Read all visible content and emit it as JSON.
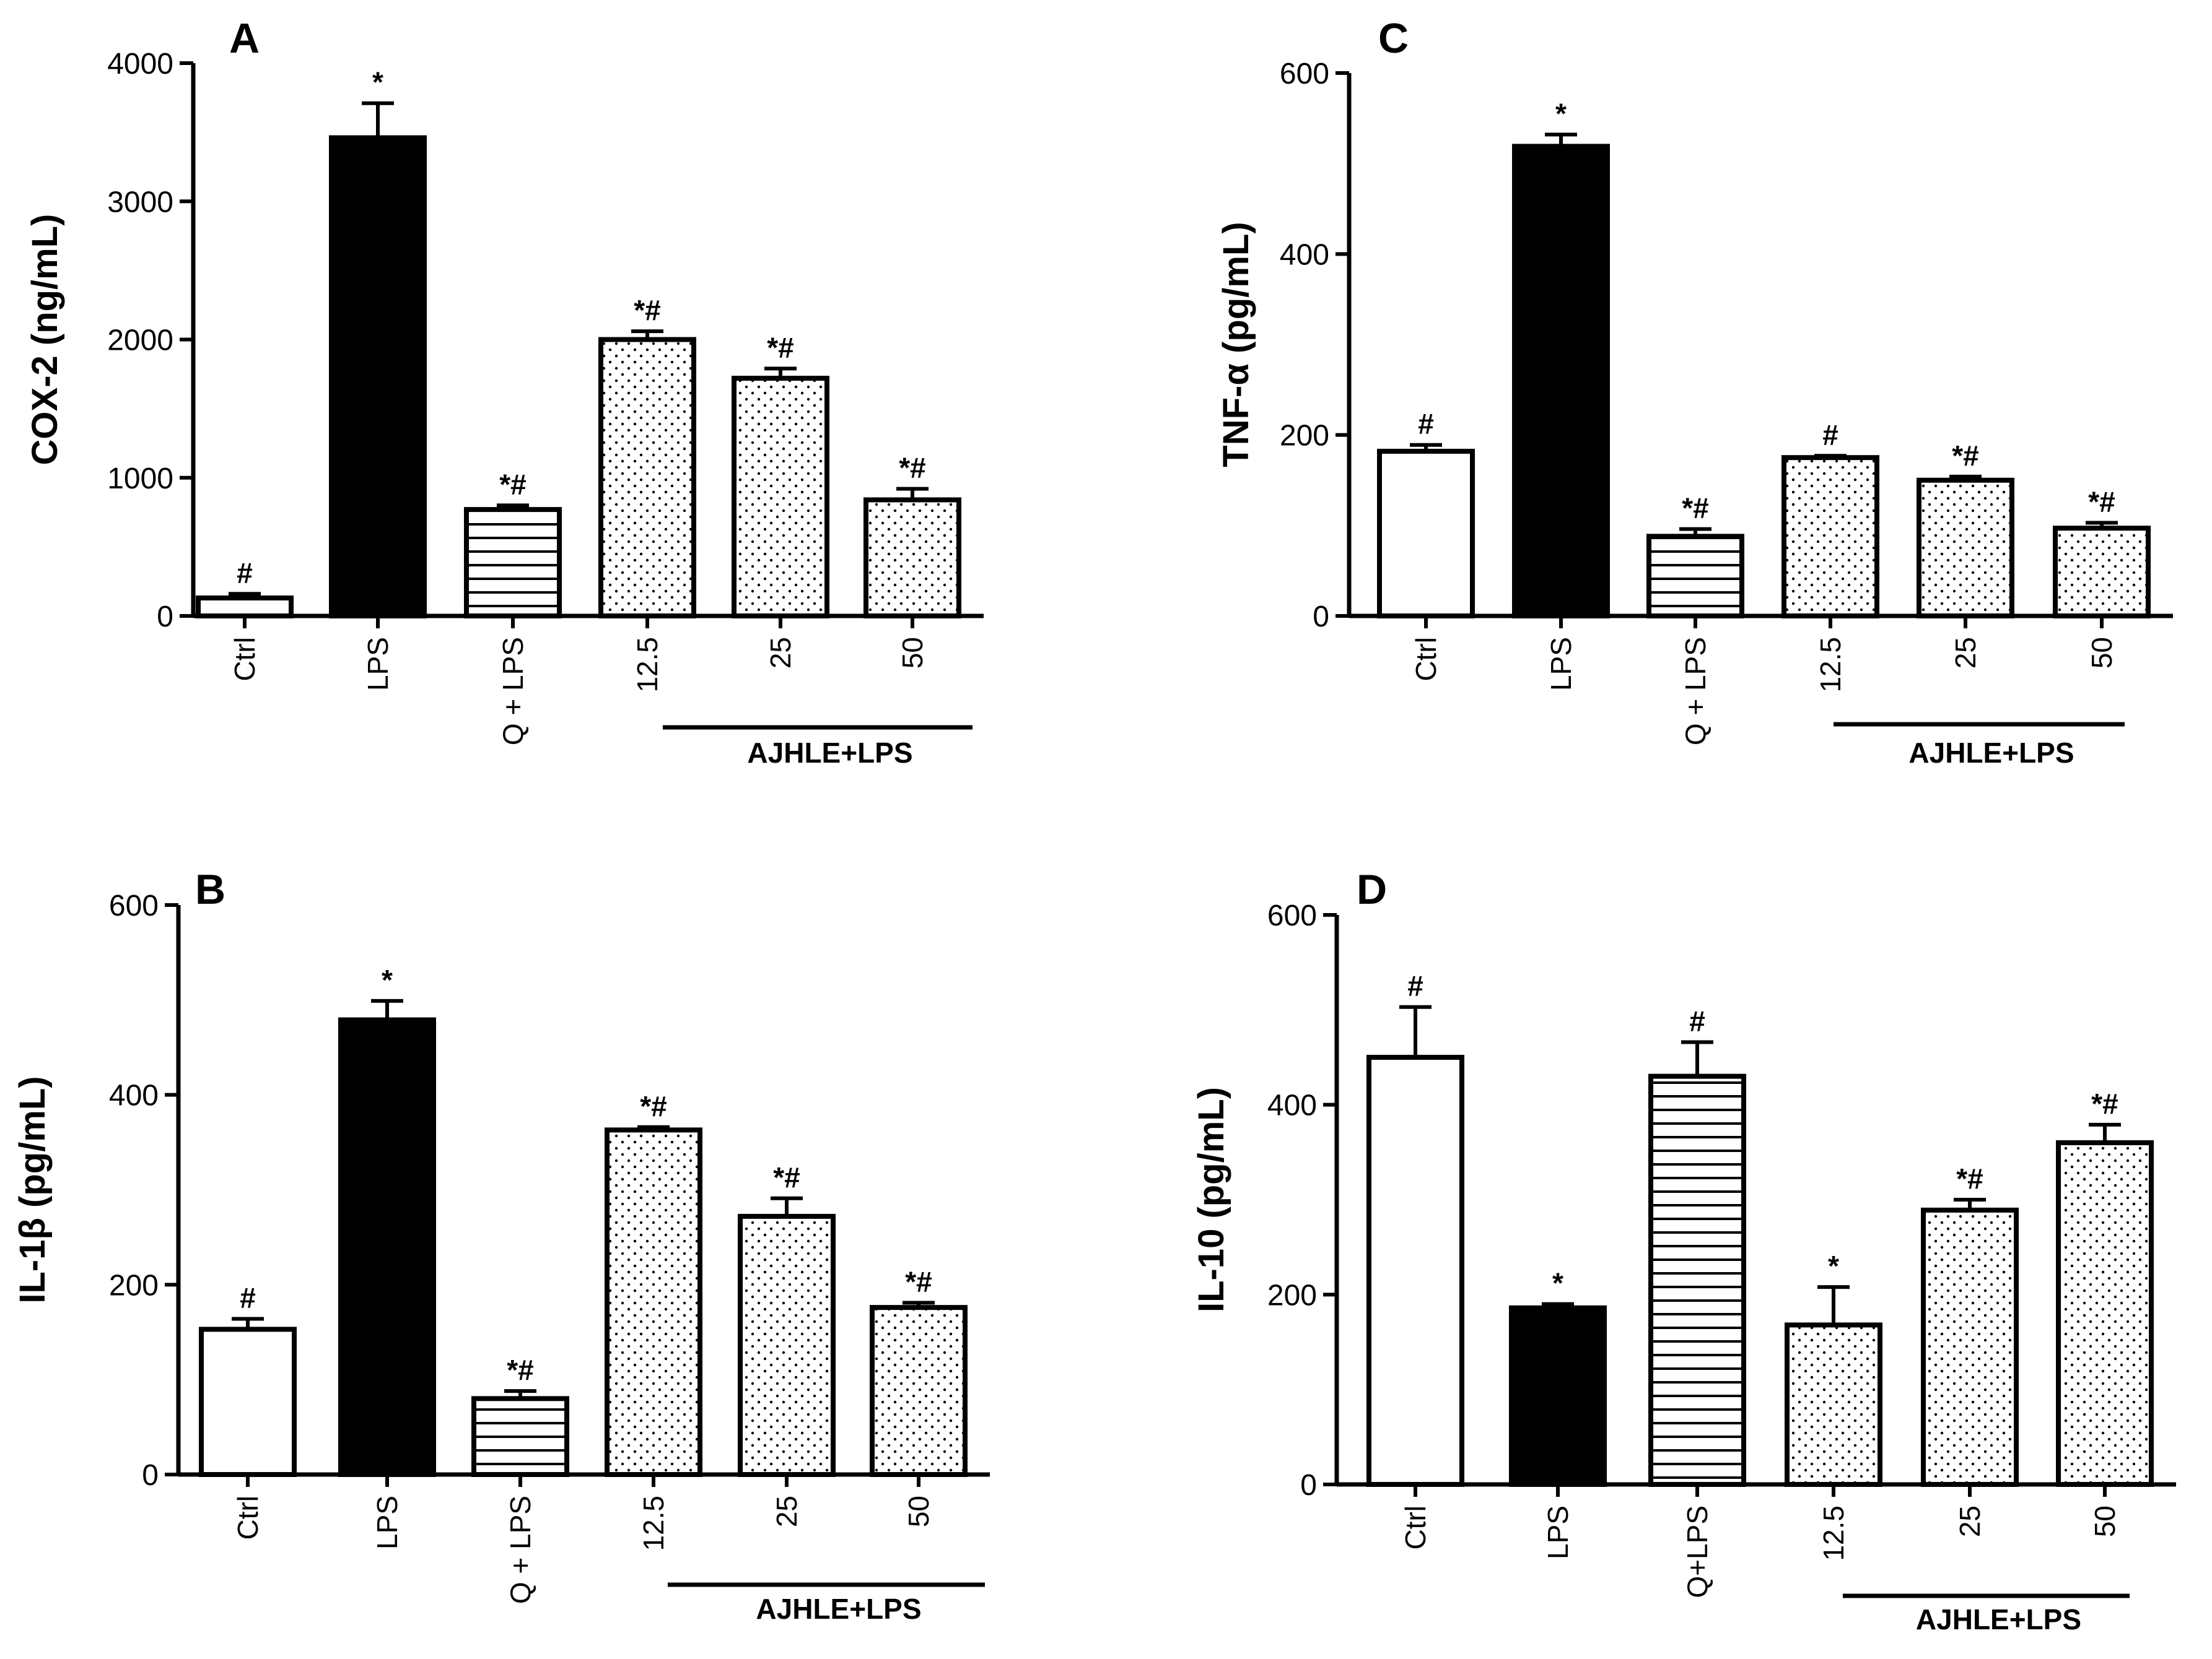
{
  "chart_data": [
    {
      "panel": "A",
      "type": "bar",
      "ylabel": "COX-2 (ng/mL)",
      "ylim": [
        0,
        4000
      ],
      "yticks": [
        0,
        1000,
        2000,
        3000,
        4000
      ],
      "categories": [
        "Ctrl",
        "LPS",
        "Q + LPS",
        "12.5",
        "25",
        "50"
      ],
      "values": [
        130,
        3460,
        770,
        2000,
        1720,
        840
      ],
      "errors": [
        30,
        250,
        30,
        60,
        70,
        80
      ],
      "significance": [
        "#",
        "*",
        "*#",
        "*#",
        "*#",
        "*#"
      ],
      "fills": [
        "white",
        "black",
        "hlines",
        "dots",
        "dots",
        "dots"
      ],
      "group_label": "AJHLE+LPS",
      "group_categories": [
        "12.5",
        "25",
        "50"
      ]
    },
    {
      "panel": "C",
      "type": "bar",
      "ylabel": "TNF-α (pg/mL)",
      "ylim": [
        0,
        600
      ],
      "yticks": [
        0,
        200,
        400,
        600
      ],
      "categories": [
        "Ctrl",
        "LPS",
        "Q + LPS",
        "12.5",
        "25",
        "50"
      ],
      "values": [
        182,
        519,
        88,
        175,
        150,
        97
      ],
      "errors": [
        7,
        13,
        8,
        2,
        4,
        6
      ],
      "significance": [
        "#",
        "*",
        "*#",
        "#",
        "*#",
        "*#"
      ],
      "fills": [
        "white",
        "black",
        "hlines",
        "dots",
        "dots",
        "dots"
      ],
      "group_label": "AJHLE+LPS",
      "group_categories": [
        "12.5",
        "25",
        "50"
      ]
    },
    {
      "panel": "B",
      "type": "bar",
      "ylabel": "IL-1β (pg/mL)",
      "ylim": [
        0,
        600
      ],
      "yticks": [
        0,
        200,
        400,
        600
      ],
      "categories": [
        "Ctrl",
        "LPS",
        "Q + LPS",
        "12.5",
        "25",
        "50"
      ],
      "values": [
        153,
        479,
        80,
        363,
        272,
        176
      ],
      "errors": [
        11,
        20,
        8,
        3,
        19,
        5
      ],
      "significance": [
        "#",
        "*",
        "*#",
        "*#",
        "*#",
        "*#"
      ],
      "fills": [
        "white",
        "black",
        "hlines",
        "dots",
        "dots",
        "dots"
      ],
      "group_label": "AJHLE+LPS",
      "group_categories": [
        "12.5",
        "25",
        "50"
      ]
    },
    {
      "panel": "D",
      "type": "bar",
      "ylabel": "IL-10 (pg/mL)",
      "ylim": [
        0,
        600
      ],
      "yticks": [
        0,
        200,
        400,
        600
      ],
      "categories": [
        "Ctrl",
        "LPS",
        "Q+LPS",
        "12.5",
        "25",
        "50"
      ],
      "values": [
        450,
        186,
        430,
        168,
        289,
        360
      ],
      "errors": [
        53,
        4,
        36,
        40,
        11,
        19
      ],
      "significance": [
        "#",
        "*",
        "#",
        "*",
        "*#",
        "*#"
      ],
      "fills": [
        "white",
        "black",
        "hlines",
        "dots",
        "dots",
        "dots"
      ],
      "group_label": "AJHLE+LPS",
      "group_categories": [
        "12.5",
        "25",
        "50"
      ]
    }
  ]
}
